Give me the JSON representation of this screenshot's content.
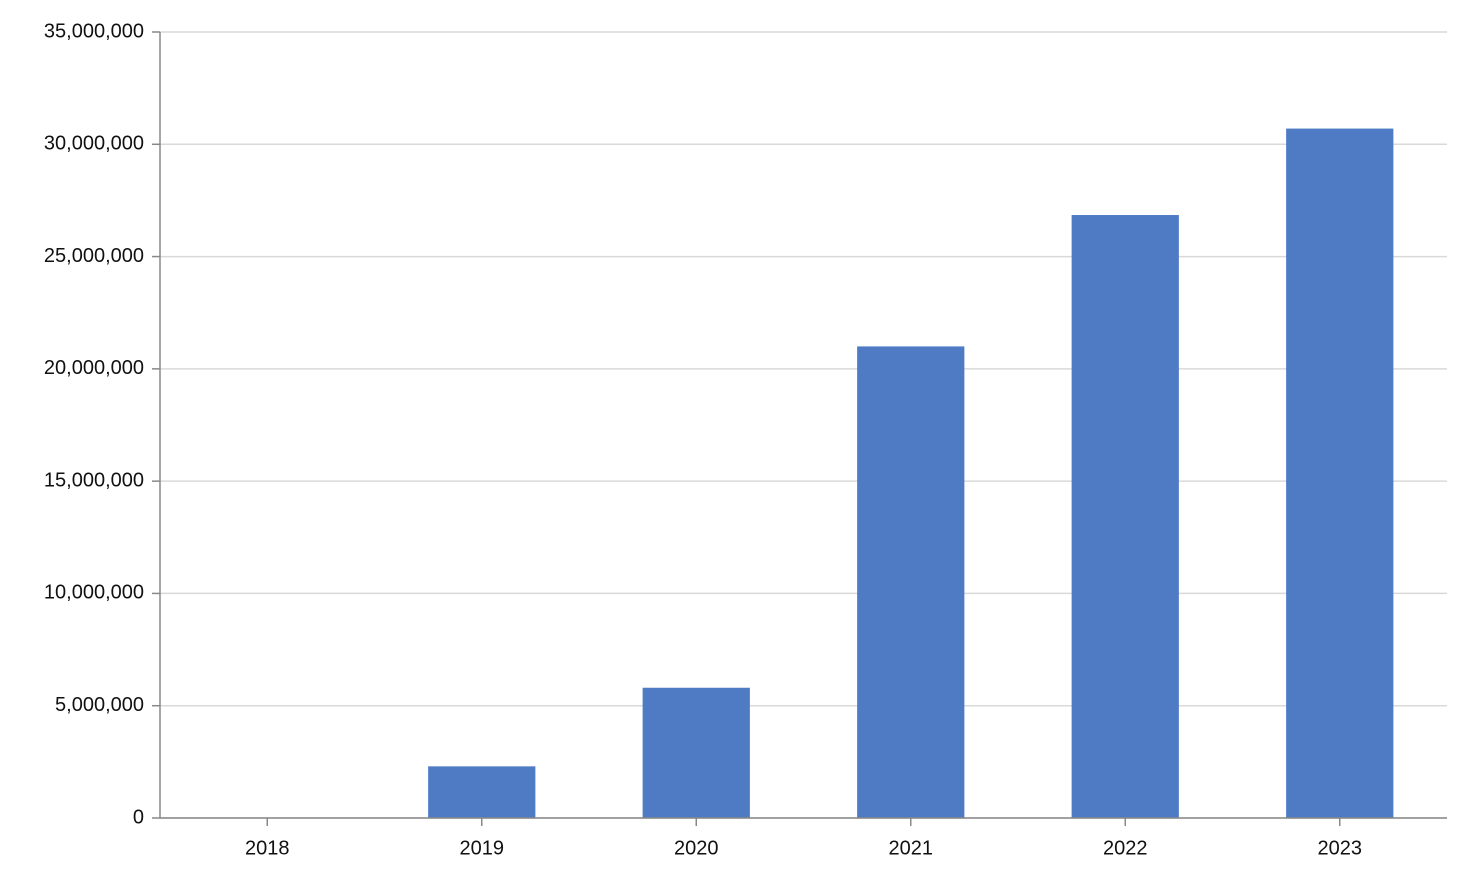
{
  "chart_data": {
    "type": "bar",
    "categories": [
      "2018",
      "2019",
      "2020",
      "2021",
      "2022",
      "2023"
    ],
    "values": [
      0,
      2300000,
      5800000,
      21000000,
      26850000,
      30700000
    ],
    "color": "#4f7bc4",
    "ylim": [
      0,
      35000000
    ],
    "yticks": [
      0,
      {
        "value": 5000000,
        "label": "5,000,000"
      },
      {
        "value": 10000000,
        "label": "10,000,000"
      },
      {
        "value": 15000000,
        "label": "15,000,000"
      },
      {
        "value": 20000000,
        "label": "20,000,000"
      },
      {
        "value": 25000000,
        "label": "25,000,000"
      },
      {
        "value": 30000000,
        "label": "30,000,000"
      },
      {
        "value": 35000000,
        "label": "35,000,000"
      }
    ],
    "grid": true
  }
}
